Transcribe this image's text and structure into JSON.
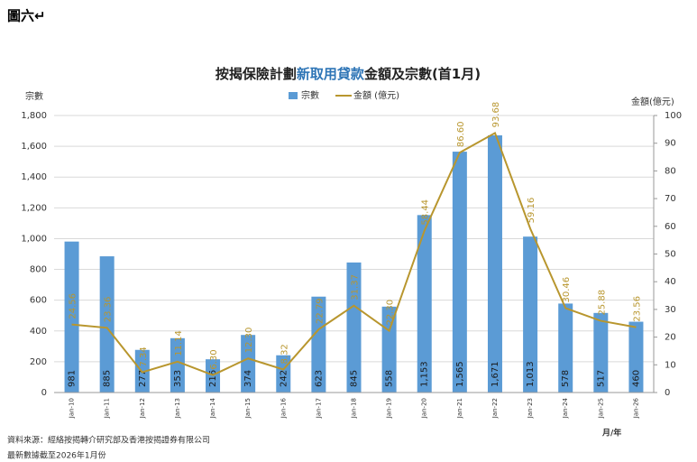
{
  "header": "圖六↵",
  "chart_data": {
    "type": "bar-line",
    "title": [
      "按揭保險計劃",
      "新取用貸款",
      "金額及宗數(首1月)"
    ],
    "title_highlight_color": "#2e75b6",
    "y_label": "宗數",
    "y2_label": "金額(億元)",
    "x_label": "月/年",
    "categories": [
      "Jan-10",
      "Jan-11",
      "Jan-12",
      "Jan-13",
      "Jan-14",
      "Jan-15",
      "Jan-16",
      "Jan-17",
      "Jan-18",
      "Jan-19",
      "Jan-20",
      "Jan-21",
      "Jan-22",
      "Jan-23",
      "Jan-24",
      "Jan-25",
      "Jan-26"
    ],
    "series": [
      {
        "name": "宗數",
        "type": "bar",
        "color": "#5b9bd5",
        "axis": "y",
        "values": [
          981,
          885,
          277,
          353,
          216,
          374,
          242,
          623,
          845,
          558,
          1153,
          1565,
          1671,
          1013,
          578,
          517,
          460
        ],
        "value_labels": [
          "981",
          "885",
          "277",
          "353",
          "216",
          "374",
          "242",
          "623",
          "845",
          "558",
          "1,153",
          "1,565",
          "1,671",
          "1,013",
          "578",
          "517",
          "460"
        ]
      },
      {
        "name": "金額 (億元)",
        "type": "line",
        "color": "#b8962e",
        "axis": "y2",
        "values": [
          24.56,
          23.36,
          7.34,
          11.14,
          6.3,
          12.3,
          8.32,
          22.79,
          31.37,
          22.3,
          58.44,
          86.6,
          93.68,
          59.16,
          30.46,
          25.88,
          23.56
        ],
        "value_labels": [
          "24.56",
          "23.36",
          "7.34",
          "11.14",
          "6.30",
          "12.30",
          "8.32",
          "22.79",
          "31.37",
          "22.30",
          "58.44",
          "86.60",
          "93.68",
          "59.16",
          "30.46",
          "25.88",
          "23.56"
        ]
      }
    ],
    "ylim": [
      0,
      1800
    ],
    "yticks": [
      0,
      200,
      400,
      600,
      800,
      {
        "value": 1000,
        "label": "1,000"
      },
      {
        "value": 1200,
        "label": "1,200"
      },
      {
        "value": 1400,
        "label": "1,400"
      },
      {
        "value": 1600,
        "label": "1,600"
      },
      {
        "value": 1800,
        "label": "1,800"
      }
    ],
    "y2lim": [
      0,
      100
    ],
    "y2ticks": [
      0,
      10,
      20,
      30,
      40,
      50,
      60,
      70,
      80,
      90,
      100
    ],
    "grid": true,
    "legend": "top"
  },
  "notes": [
    "資料來源：經絡按揭轉介研究部及香港按揭證券有限公司",
    "最新數據截至2026年1月份"
  ]
}
